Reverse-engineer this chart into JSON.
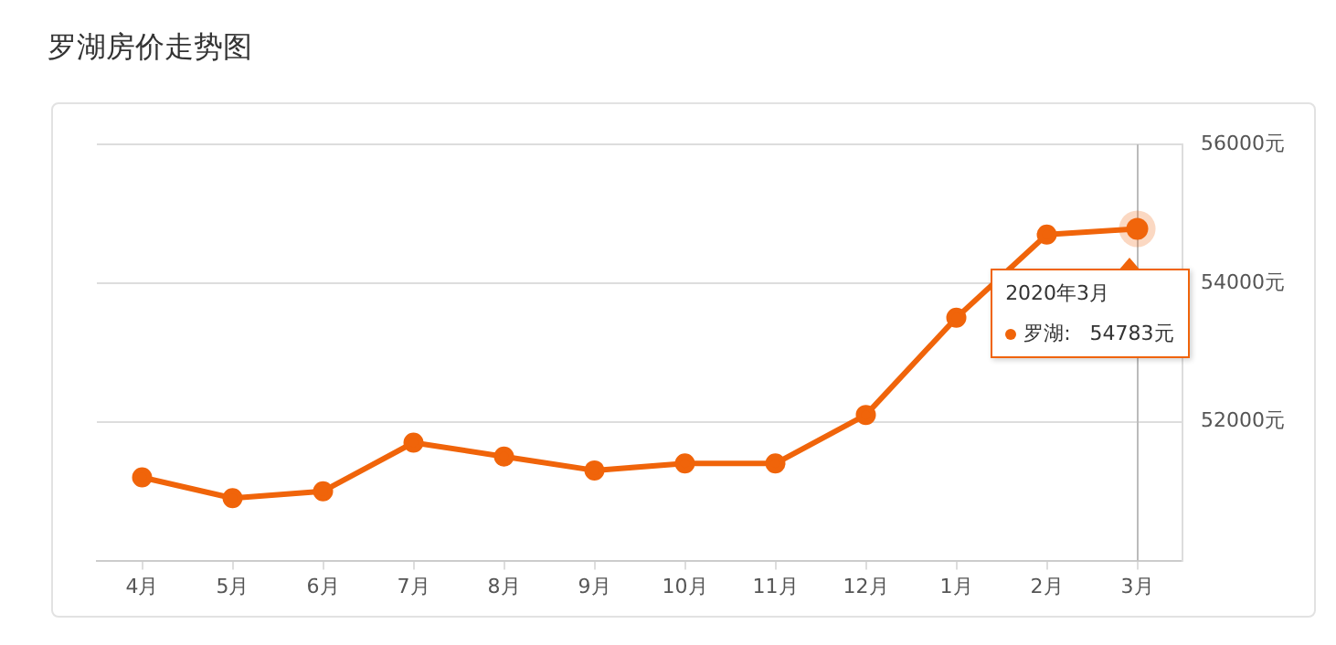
{
  "chart_data": {
    "type": "line",
    "title": "罗湖房价走势图",
    "categories": [
      "4月",
      "5月",
      "6月",
      "7月",
      "8月",
      "9月",
      "10月",
      "11月",
      "12月",
      "1月",
      "2月",
      "3月"
    ],
    "series": [
      {
        "color": "#f0640a",
        "values": [
          51200,
          50900,
          51000,
          51700,
          51500,
          51300,
          51400,
          51400,
          52100,
          53500,
          54700,
          54783
        ]
      }
    ],
    "ylim": [
      50000,
      56000
    ],
    "yticks": [
      {
        "value": 50000,
        "label": null
      },
      {
        "value": 52000,
        "label": "52000元"
      },
      {
        "value": 54000,
        "label": "54000元"
      },
      {
        "value": 56000,
        "label": "56000元"
      }
    ],
    "ref_lines": [
      {
        "axis": "x",
        "value": "3月",
        "color": "#bbbbbb"
      }
    ],
    "annotations": [
      {
        "text": "2020年3月",
        "x": "3月",
        "y": 54783
      },
      "罗湖:   54783元"
    ],
    "grid": "y",
    "legend": false,
    "marker": "circle",
    "line_style": "solid"
  }
}
